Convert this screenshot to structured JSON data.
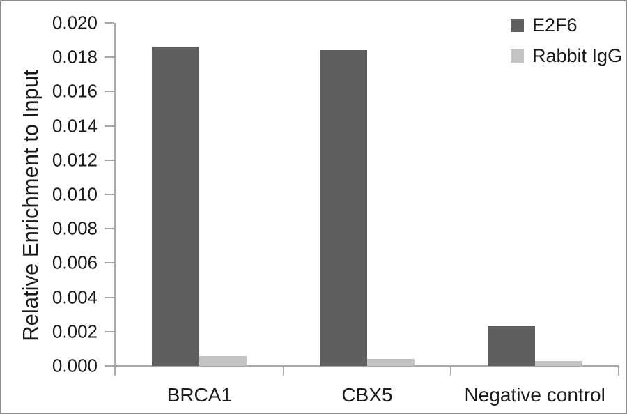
{
  "figure": {
    "background": "#ffffff",
    "border_color": "#8c8c8c"
  },
  "chart_data": {
    "type": "bar",
    "categories": [
      "BRCA1",
      "CBX5",
      "Negative control"
    ],
    "series": [
      {
        "name": "E2F6",
        "color": "#5f5f5f",
        "values": [
          0.0186,
          0.0184,
          0.0023
        ]
      },
      {
        "name": "Rabbit IgG",
        "color": "#c3c3c3",
        "values": [
          0.00055,
          0.0004,
          0.0003
        ]
      }
    ],
    "title": "",
    "xlabel": "",
    "ylabel": "Relative Enrichment to Input",
    "ylim": [
      0,
      0.02
    ],
    "ytick_step": 0.002,
    "ytick_decimals": 3,
    "ytick_labels": [
      "0.000",
      "0.002",
      "0.004",
      "0.006",
      "0.008",
      "0.010",
      "0.012",
      "0.014",
      "0.016",
      "0.018",
      "0.020"
    ],
    "grid": false,
    "legend_position": "top-right",
    "axis_color": "#a8a8a8",
    "text_color": "#1a1a1a"
  }
}
